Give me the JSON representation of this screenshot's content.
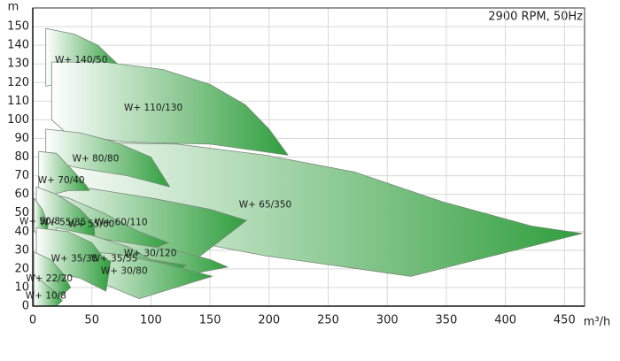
{
  "chart_data": {
    "type": "area",
    "title": "2900 RPM, 50Hz",
    "y_label": "m",
    "x_label": "m³/h",
    "xlim": [
      0,
      467
    ],
    "ylim": [
      0,
      160
    ],
    "xticks": [
      0,
      50,
      100,
      150,
      200,
      250,
      300,
      350,
      400,
      450
    ],
    "yticks": [
      0,
      10,
      20,
      30,
      40,
      50,
      60,
      70,
      80,
      90,
      100,
      110,
      120,
      130,
      140,
      150
    ],
    "grid": true,
    "color": "#2f9e3c",
    "series": [
      {
        "name": "W+ 140/50",
        "x": [
          11,
          11,
          35,
          55,
          70,
          75,
          60,
          11
        ],
        "y": [
          118,
          149,
          146,
          140,
          131,
          128,
          125,
          118
        ]
      },
      {
        "name": "W+ 110/130",
        "x": [
          16,
          16,
          60,
          110,
          150,
          180,
          200,
          216,
          150,
          80,
          30,
          16
        ],
        "y": [
          117,
          131,
          131,
          127,
          119,
          108,
          95,
          81,
          87,
          88,
          92,
          100
        ]
      },
      {
        "name": "W+ 65/350",
        "x": [
          10,
          20,
          122,
          197,
          272,
          347,
          422,
          465,
          320,
          197,
          122,
          47,
          17
        ],
        "y": [
          60,
          88,
          87,
          81,
          72,
          56,
          43,
          39,
          16,
          27,
          36,
          46,
          57
        ]
      },
      {
        "name": "W+ 80/80",
        "x": [
          11,
          11,
          40,
          70,
          100,
          116,
          80,
          40,
          11
        ],
        "y": [
          69,
          95,
          93,
          88,
          80,
          64,
          70,
          74,
          78
        ]
      },
      {
        "name": "W+ 60/110",
        "x": [
          10,
          10,
          50,
          100,
          150,
          181,
          117,
          80,
          40,
          10
        ],
        "y": [
          45,
          65,
          63,
          58,
          52,
          46,
          15,
          25,
          35,
          45
        ]
      },
      {
        "name": "W+ 70/40",
        "x": [
          5,
          5,
          20,
          35,
          45,
          48,
          30,
          5
        ],
        "y": [
          55,
          83,
          82,
          72,
          65,
          62,
          62,
          58
        ]
      },
      {
        "name": "W+ 55/60",
        "x": [
          5,
          5,
          30,
          60,
          90,
          115,
          85,
          50,
          5
        ],
        "y": [
          45,
          62,
          58,
          50,
          40,
          34,
          27,
          35,
          45
        ]
      },
      {
        "name": "W+ 55/35",
        "x": [
          3,
          3,
          20,
          40,
          52,
          53,
          30,
          3
        ],
        "y": [
          41,
          64,
          60,
          52,
          44,
          27,
          32,
          38
        ]
      },
      {
        "name": "W+ 50/8",
        "x": [
          1,
          1,
          8,
          13,
          12,
          1
        ],
        "y": [
          40,
          58,
          52,
          44,
          38,
          40
        ]
      },
      {
        "name": "W+ 30/120",
        "x": [
          40,
          80,
          120,
          150,
          165,
          140,
          100,
          60,
          40
        ],
        "y": [
          38,
          34,
          30,
          25,
          21,
          18,
          22,
          28,
          38
        ]
      },
      {
        "name": "W+ 35/55",
        "x": [
          20,
          50,
          80,
          100,
          130,
          92,
          60,
          20
        ],
        "y": [
          42,
          38,
          32,
          25,
          22,
          5,
          15,
          25
        ]
      },
      {
        "name": "W+ 30/80",
        "x": [
          30,
          70,
          110,
          152,
          90,
          60,
          30
        ],
        "y": [
          30,
          28,
          23,
          16,
          4,
          12,
          18
        ]
      },
      {
        "name": "W+ 35/35",
        "x": [
          3,
          3,
          30,
          50,
          60,
          66,
          62,
          40,
          3
        ],
        "y": [
          20,
          42,
          40,
          34,
          26,
          24,
          8,
          15,
          20
        ]
      },
      {
        "name": "W+ 22/20",
        "x": [
          1,
          1,
          15,
          25,
          32,
          23,
          1
        ],
        "y": [
          8,
          29,
          25,
          18,
          10,
          5,
          8
        ]
      },
      {
        "name": "W+ 10/8",
        "x": [
          1,
          1,
          10,
          20,
          25,
          20,
          1
        ],
        "y": [
          0,
          17,
          12,
          7,
          3,
          0,
          0
        ]
      }
    ]
  }
}
